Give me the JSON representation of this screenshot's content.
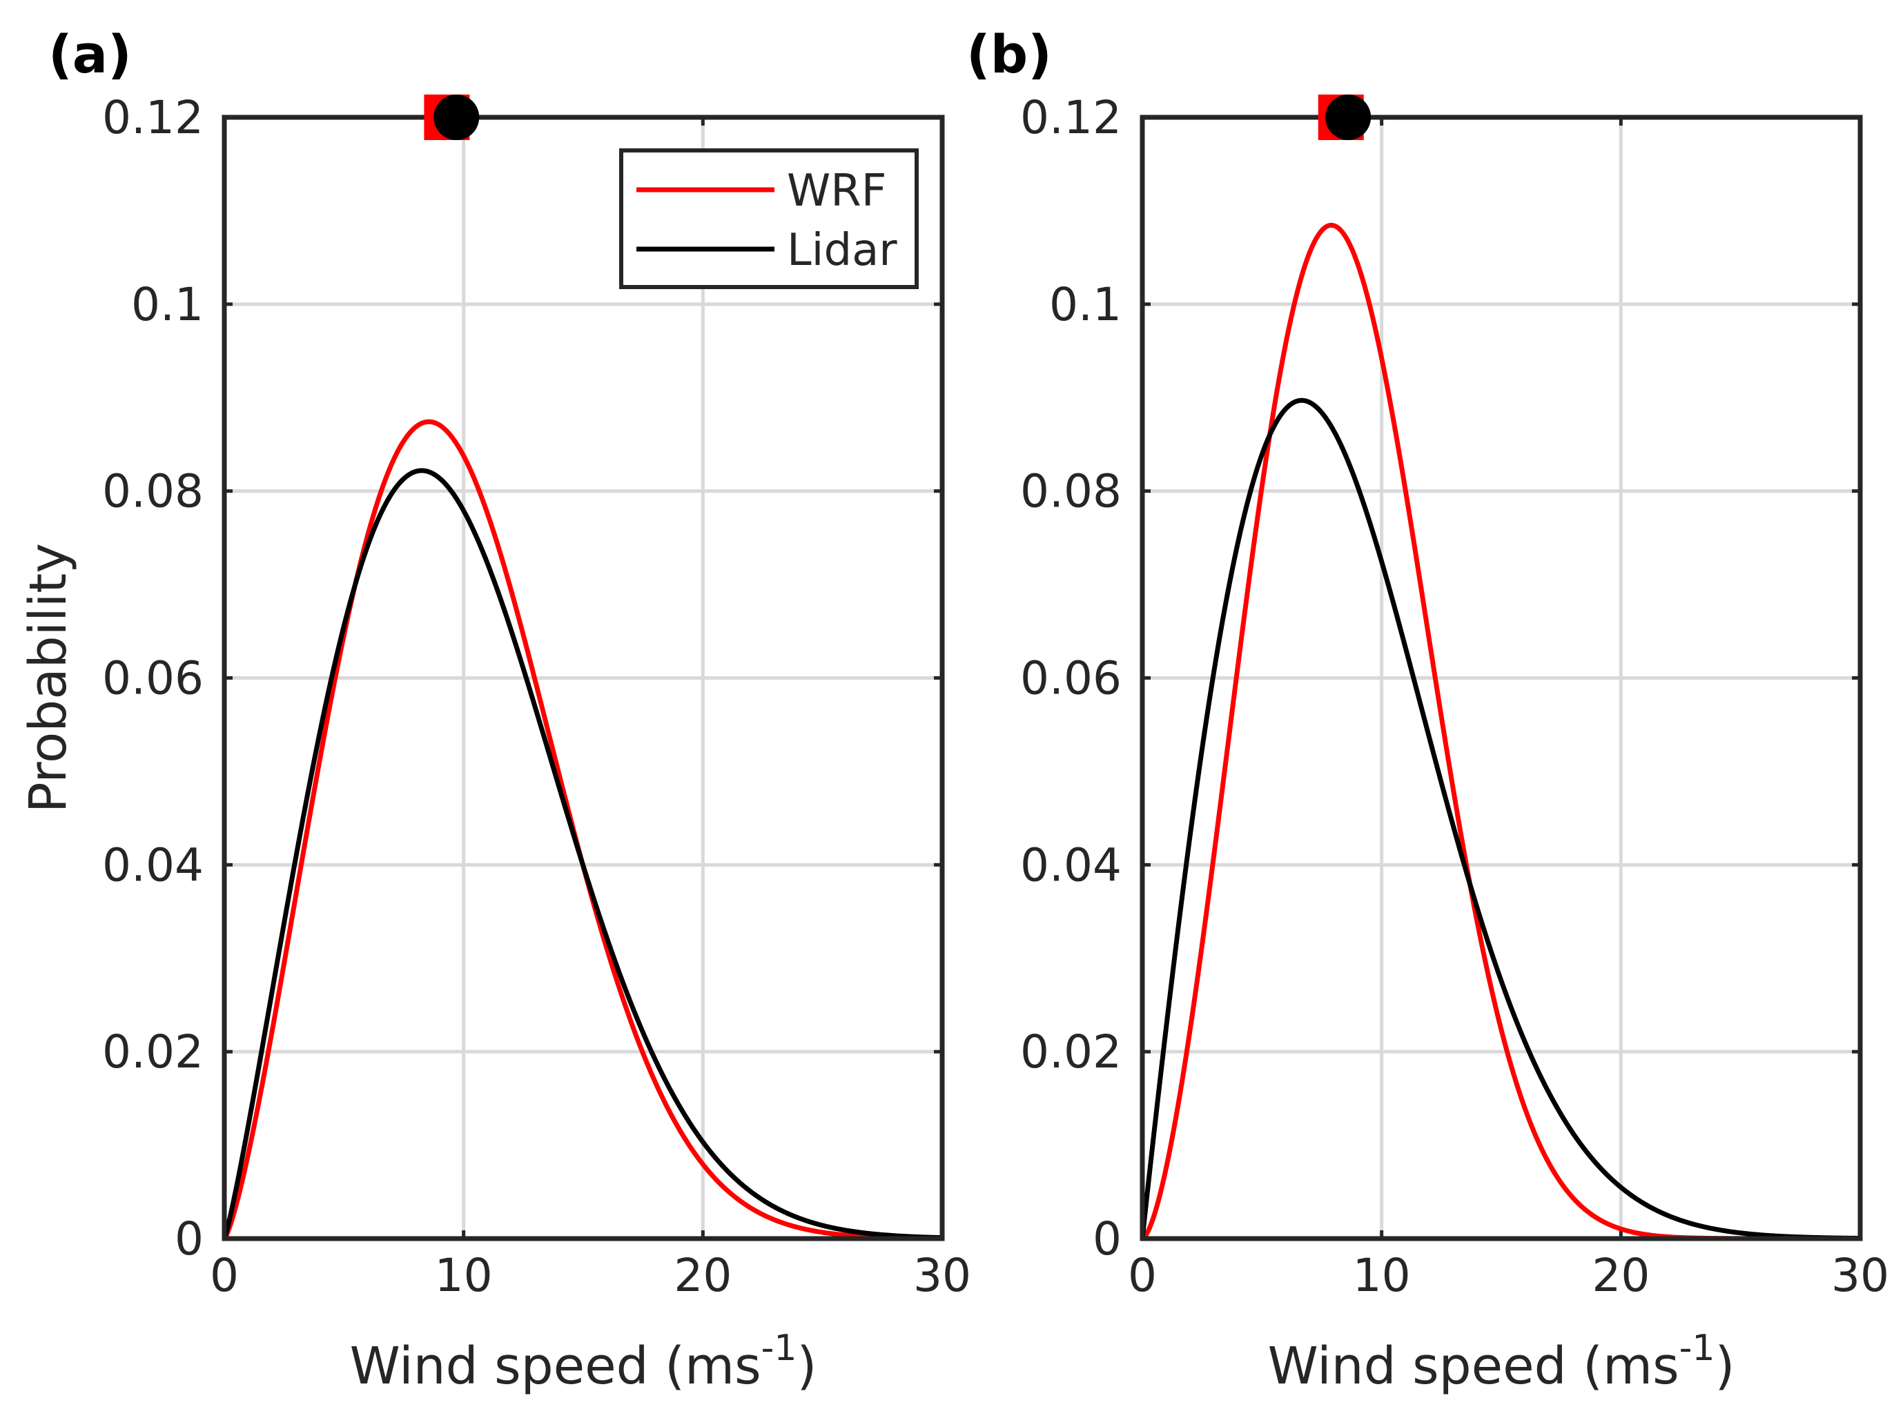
{
  "chart_data": [
    {
      "type": "line",
      "panel_label": "(a)",
      "xlabel": "Wind speed (ms",
      "xlabel_sup": "-1",
      "xlabel_close": ")",
      "ylabel": "Probability",
      "xlim": [
        0,
        30
      ],
      "ylim": [
        0,
        0.12
      ],
      "xticks": [
        0,
        10,
        20,
        30
      ],
      "xtick_labels": [
        "0",
        "10",
        "20",
        "30"
      ],
      "yticks": [
        0,
        0.02,
        0.04,
        0.06,
        0.08,
        0.1,
        0.12
      ],
      "ytick_labels": [
        "0",
        "0.02",
        "0.04",
        "0.06",
        "0.08",
        "0.1",
        "0.12"
      ],
      "grid": true,
      "legend": {
        "position": "top-right",
        "entries": [
          "WRF",
          "Lidar"
        ]
      },
      "series": [
        {
          "name": "WRF",
          "distribution": "weibull",
          "k": 2.32,
          "c": 10.9,
          "color": "#ff0000",
          "mean_marker": {
            "shape": "square",
            "x": 9.3,
            "y": 0.12
          }
        },
        {
          "name": "Lidar",
          "distribution": "weibull",
          "k": 2.16,
          "c": 11.0,
          "color": "#000000",
          "mean_marker": {
            "shape": "circle",
            "x": 9.7,
            "y": 0.12
          }
        }
      ]
    },
    {
      "type": "line",
      "panel_label": "(b)",
      "xlabel": "Wind speed (ms",
      "xlabel_sup": "-1",
      "xlabel_close": ")",
      "ylabel": "",
      "xlim": [
        0,
        30
      ],
      "ylim": [
        0,
        0.12
      ],
      "xticks": [
        0,
        10,
        20,
        30
      ],
      "xtick_labels": [
        "0",
        "10",
        "20",
        "30"
      ],
      "yticks": [
        0,
        0.02,
        0.04,
        0.06,
        0.08,
        0.1,
        0.12
      ],
      "ytick_labels": [
        "0",
        "0.02",
        "0.04",
        "0.06",
        "0.08",
        "0.1",
        "0.12"
      ],
      "grid": true,
      "series": [
        {
          "name": "WRF",
          "distribution": "weibull",
          "k": 2.58,
          "c": 9.55,
          "color": "#ff0000",
          "mean_marker": {
            "shape": "square",
            "x": 8.3,
            "y": 0.12
          }
        },
        {
          "name": "Lidar",
          "distribution": "weibull",
          "k": 1.98,
          "c": 9.5,
          "color": "#000000",
          "mean_marker": {
            "shape": "circle",
            "x": 8.6,
            "y": 0.12
          }
        }
      ]
    }
  ]
}
